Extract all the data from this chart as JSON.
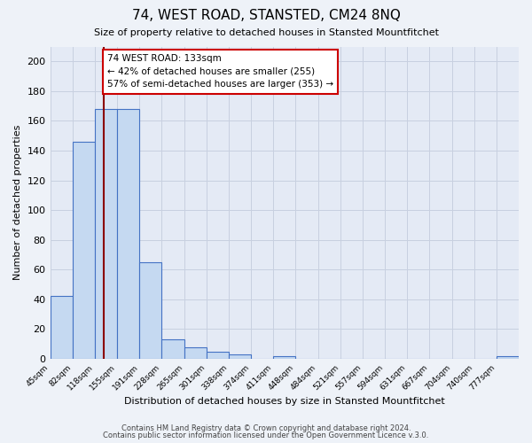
{
  "title": "74, WEST ROAD, STANSTED, CM24 8NQ",
  "subtitle": "Size of property relative to detached houses in Stansted Mountfitchet",
  "xlabel": "Distribution of detached houses by size in Stansted Mountfitchet",
  "ylabel": "Number of detached properties",
  "footer_line1": "Contains HM Land Registry data © Crown copyright and database right 2024.",
  "footer_line2": "Contains public sector information licensed under the Open Government Licence v.3.0.",
  "bin_labels": [
    "45sqm",
    "82sqm",
    "118sqm",
    "155sqm",
    "191sqm",
    "228sqm",
    "265sqm",
    "301sqm",
    "338sqm",
    "374sqm",
    "411sqm",
    "448sqm",
    "484sqm",
    "521sqm",
    "557sqm",
    "594sqm",
    "631sqm",
    "667sqm",
    "704sqm",
    "740sqm",
    "777sqm"
  ],
  "bar_values": [
    42,
    146,
    168,
    168,
    65,
    13,
    8,
    5,
    3,
    0,
    2,
    0,
    0,
    0,
    0,
    0,
    0,
    0,
    0,
    0,
    2
  ],
  "bar_color": "#c5d9f1",
  "bar_edge_color": "#4472c4",
  "annotation_title": "74 WEST ROAD: 133sqm",
  "annotation_line1": "← 42% of detached houses are smaller (255)",
  "annotation_line2": "57% of semi-detached houses are larger (353) →",
  "red_line_x": 2.4,
  "ylim": [
    0,
    210
  ],
  "yticks": [
    0,
    20,
    40,
    60,
    80,
    100,
    120,
    140,
    160,
    180,
    200
  ],
  "annotation_box_color": "#ffffff",
  "annotation_box_edge": "#cc0000",
  "background_color": "#eef2f8",
  "plot_background": "#e4eaf5"
}
